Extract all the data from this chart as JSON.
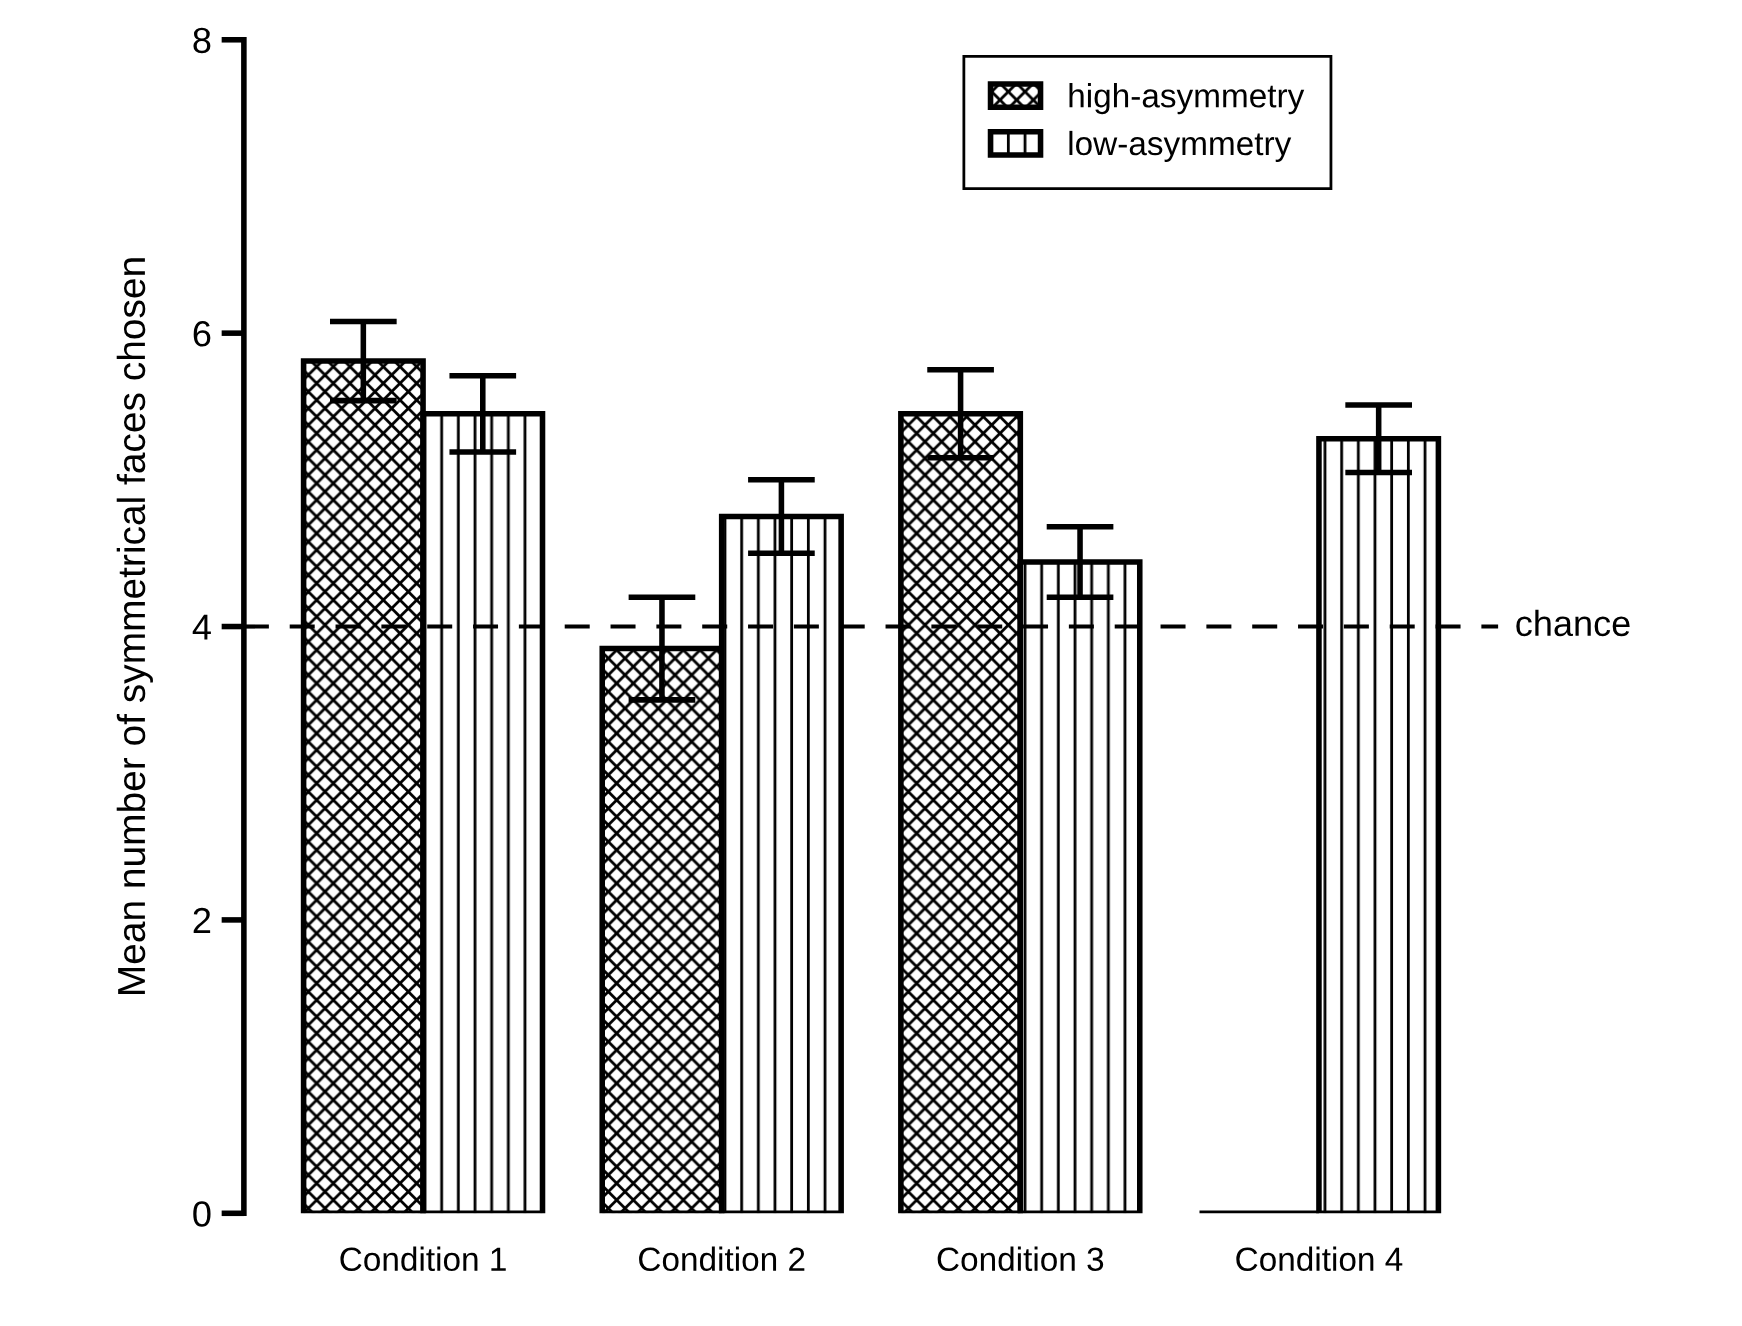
{
  "chart_data": {
    "type": "bar",
    "ylabel": "Mean number of symmetrical faces chosen",
    "categories": [
      "Condition 1",
      "Condition 2",
      "Condition 3",
      "Condition 4"
    ],
    "series": [
      {
        "name": "high-asymmetry",
        "color": "#000000",
        "values": [
          5.81,
          3.85,
          5.45,
          0
        ],
        "errors": [
          0.27,
          0.35,
          0.3,
          null
        ]
      },
      {
        "name": "low-asymmetry",
        "color": "#000000",
        "values": [
          5.45,
          4.75,
          4.44,
          5.28
        ],
        "errors": [
          0.26,
          0.25,
          0.24,
          0.23
        ]
      }
    ],
    "ylim": [
      0,
      8
    ],
    "yticks": [
      0,
      2,
      4,
      6,
      8
    ],
    "ref_lines": [
      {
        "axis": "y",
        "value": 4,
        "label": "chance",
        "line_style": "dashed",
        "color": "#000000"
      }
    ],
    "legend": "top right",
    "grid": false
  }
}
